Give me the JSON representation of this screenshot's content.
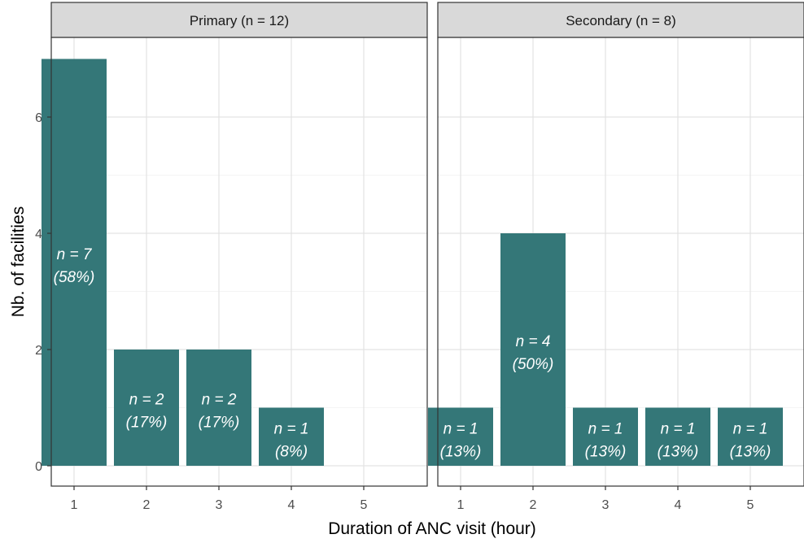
{
  "chart_data": {
    "type": "bar",
    "xlabel": "Duration of ANC visit (hour)",
    "ylabel": "Nb. of facilities",
    "ylim": [
      0,
      7
    ],
    "y_ticks": [
      "0",
      "2",
      "4",
      "6"
    ],
    "x_ticks": [
      "1",
      "2",
      "3",
      "4",
      "5"
    ],
    "grid": true,
    "bar_color": "#347778",
    "strip_color": "#d9d9d9",
    "panels": [
      {
        "title": "Primary (n = 12)",
        "categories": [
          "1",
          "2",
          "3",
          "4",
          "5"
        ],
        "values": [
          7,
          2,
          2,
          1,
          0
        ],
        "labels": [
          [
            "n = 7",
            "(58%)"
          ],
          [
            "n = 2",
            "(17%)"
          ],
          [
            "n = 2",
            "(17%)"
          ],
          [
            "n = 1",
            "(8%)"
          ],
          null
        ]
      },
      {
        "title": "Secondary (n = 8)",
        "categories": [
          "1",
          "2",
          "3",
          "4",
          "5"
        ],
        "values": [
          1,
          4,
          1,
          1,
          1
        ],
        "labels": [
          [
            "n = 1",
            "(13%)"
          ],
          [
            "n = 4",
            "(50%)"
          ],
          [
            "n = 1",
            "(13%)"
          ],
          [
            "n = 1",
            "(13%)"
          ],
          [
            "n = 1",
            "(13%)"
          ]
        ]
      }
    ]
  }
}
